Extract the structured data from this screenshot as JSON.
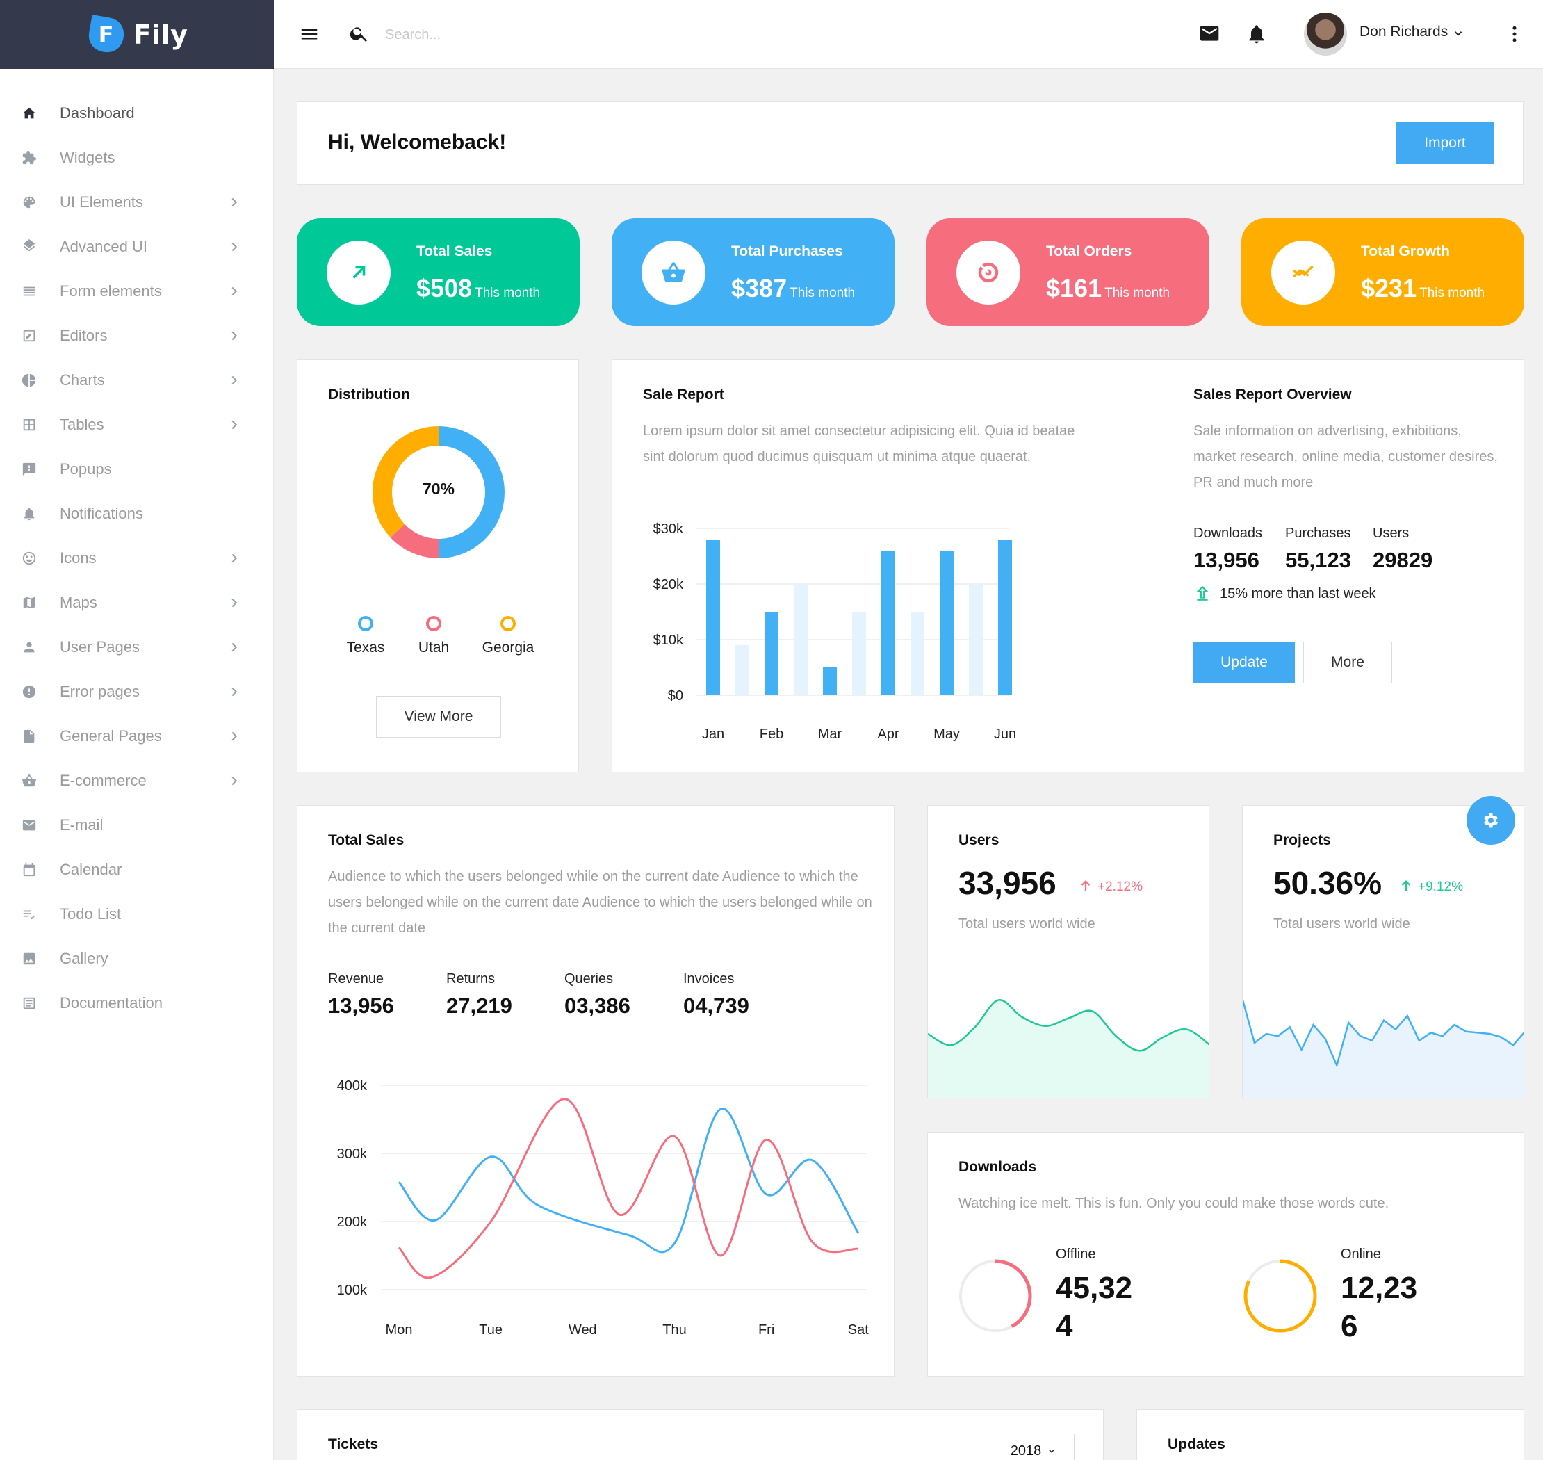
{
  "brand": {
    "name": "Fily",
    "letter": "F"
  },
  "sidebar": {
    "items": [
      {
        "label": "Dashboard",
        "icon": "home-icon",
        "has_submenu": false
      },
      {
        "label": "Widgets",
        "icon": "puzzle-icon",
        "has_submenu": false
      },
      {
        "label": "UI Elements",
        "icon": "palette-icon",
        "has_submenu": true
      },
      {
        "label": "Advanced UI",
        "icon": "layers-icon",
        "has_submenu": true
      },
      {
        "label": "Form elements",
        "icon": "list-icon",
        "has_submenu": true
      },
      {
        "label": "Editors",
        "icon": "edit-icon",
        "has_submenu": true
      },
      {
        "label": "Charts",
        "icon": "pie-chart-icon",
        "has_submenu": true
      },
      {
        "label": "Tables",
        "icon": "grid-icon",
        "has_submenu": true
      },
      {
        "label": "Popups",
        "icon": "feedback-icon",
        "has_submenu": false
      },
      {
        "label": "Notifications",
        "icon": "bell-icon",
        "has_submenu": false
      },
      {
        "label": "Icons",
        "icon": "smiley-icon",
        "has_submenu": true
      },
      {
        "label": "Maps",
        "icon": "map-icon",
        "has_submenu": true
      },
      {
        "label": "User Pages",
        "icon": "person-icon",
        "has_submenu": true
      },
      {
        "label": "Error pages",
        "icon": "error-icon",
        "has_submenu": true
      },
      {
        "label": "General Pages",
        "icon": "file-icon",
        "has_submenu": true
      },
      {
        "label": "E-commerce",
        "icon": "basket-icon",
        "has_submenu": true
      },
      {
        "label": "E-mail",
        "icon": "mail-icon",
        "has_submenu": false
      },
      {
        "label": "Calendar",
        "icon": "calendar-icon",
        "has_submenu": false
      },
      {
        "label": "Todo List",
        "icon": "checklist-icon",
        "has_submenu": false
      },
      {
        "label": "Gallery",
        "icon": "image-icon",
        "has_submenu": false
      },
      {
        "label": "Documentation",
        "icon": "document-icon",
        "has_submenu": false
      }
    ]
  },
  "topbar": {
    "search_placeholder": "Search...",
    "user_name": "Don Richards"
  },
  "welcome": {
    "title": "Hi, Welcomeback!",
    "import_label": "Import"
  },
  "stats": [
    {
      "label": "Total Sales",
      "value": "$508",
      "sub": "This month",
      "color": "#00c896",
      "icon": "trending-up-icon"
    },
    {
      "label": "Total Purchases",
      "value": "$387",
      "sub": "This month",
      "color": "#42b0f5",
      "icon": "basket-icon"
    },
    {
      "label": "Total Orders",
      "value": "$161",
      "sub": "This month",
      "color": "#f66d7e",
      "icon": "target-icon"
    },
    {
      "label": "Total Growth",
      "value": "$231",
      "sub": "This month",
      "color": "#ffae00",
      "icon": "growth-icon"
    }
  ],
  "distribution": {
    "title": "Distribution",
    "center_label": "70%",
    "legend": [
      {
        "label": "Texas",
        "color": "#42b0f5"
      },
      {
        "label": "Utah",
        "color": "#f66d7e"
      },
      {
        "label": "Georgia",
        "color": "#ffae00"
      }
    ],
    "button": "View More"
  },
  "sale_report": {
    "title": "Sale Report",
    "description": "Lorem ipsum dolor sit amet consectetur adipisicing elit. Quia id beatae sint dolorum quod ducimus quisquam ut minima atque quaerat.",
    "overview_title": "Sales Report Overview",
    "overview_description": "Sale information on advertising, exhibitions, market research, online media, customer desires, PR and much more",
    "metrics": [
      {
        "label": "Downloads",
        "value": "13,956"
      },
      {
        "label": "Purchases",
        "value": "55,123"
      },
      {
        "label": "Users",
        "value": "29829"
      }
    ],
    "trend_text": "15% more than last week",
    "update_label": "Update",
    "more_label": "More"
  },
  "total_sales": {
    "title": "Total Sales",
    "description": "Audience to which the users belonged while on the current date Audience to which the users belonged while on the current date Audience to which the users belonged while on the current date",
    "metrics": [
      {
        "label": "Revenue",
        "value": "13,956"
      },
      {
        "label": "Returns",
        "value": "27,219"
      },
      {
        "label": "Queries",
        "value": "03,386"
      },
      {
        "label": "Invoices",
        "value": "04,739"
      }
    ]
  },
  "users_card": {
    "title": "Users",
    "value": "33,956",
    "change": "+2.12%",
    "caption": "Total users world wide"
  },
  "projects_card": {
    "title": "Projects",
    "value": "50.36%",
    "change": "+9.12%",
    "caption": "Total users world wide"
  },
  "downloads_card": {
    "title": "Downloads",
    "description": "Watching ice melt. This is fun. Only you could make those words cute.",
    "offline_label": "Offline",
    "offline_value": "45,32\n4",
    "online_label": "Online",
    "online_value": "12,23\n6",
    "offline_progress": 0.42,
    "online_progress": 0.82
  },
  "tickets": {
    "title": "Tickets",
    "year": "2018"
  },
  "updates": {
    "title": "Updates"
  },
  "chart_data": [
    {
      "type": "bar",
      "categories": [
        "Jan",
        "",
        "Feb",
        "",
        "Mar",
        "",
        "Apr",
        "",
        "May",
        "",
        "Jun"
      ],
      "values": [
        28,
        9,
        15,
        20,
        5,
        15,
        26,
        15,
        26,
        20,
        28
      ],
      "highlight": [
        true,
        false,
        true,
        false,
        true,
        false,
        true,
        false,
        true,
        false,
        true
      ],
      "yticks": [
        "$0",
        "$10k",
        "$20k",
        "$30k"
      ],
      "ylim": [
        0,
        30
      ],
      "colors": {
        "main": "#42b0f5",
        "light": "#e5f3fe"
      }
    },
    {
      "type": "line",
      "categories": [
        "Mon",
        "Tue",
        "Wed",
        "Thu",
        "Fri",
        "Sat"
      ],
      "yticks": [
        "100k",
        "200k",
        "300k",
        "400k"
      ],
      "ylim": [
        100,
        400
      ],
      "series": [
        {
          "color": "#42b0f5",
          "x": [
            0,
            0.4,
            1,
            1.5,
            2.5,
            3,
            3.5,
            4,
            4.5,
            5
          ],
          "values": [
            258,
            202,
            295,
            225,
            180,
            168,
            365,
            240,
            290,
            183
          ]
        },
        {
          "color": "#f66d7e",
          "x": [
            0,
            0.35,
            1,
            1.8,
            2.4,
            3,
            3.5,
            4,
            4.5,
            5
          ],
          "values": [
            162,
            118,
            200,
            380,
            210,
            325,
            150,
            320,
            170,
            160
          ]
        }
      ]
    },
    {
      "type": "area",
      "color": "#1ec996",
      "fill": "#e3fbf3",
      "values": [
        58,
        48,
        64,
        88,
        73,
        65,
        72,
        78,
        56,
        43,
        55,
        62,
        48
      ]
    },
    {
      "type": "area",
      "color": "#42b0f5",
      "fill": "#e8f3fd",
      "values": [
        88,
        50,
        58,
        56,
        64,
        44,
        66,
        54,
        30,
        68,
        56,
        52,
        70,
        62,
        74,
        52,
        59,
        56,
        66,
        60,
        59,
        58,
        55,
        48,
        60
      ]
    },
    {
      "type": "pie",
      "categories": [
        "Texas",
        "Utah",
        "Georgia"
      ],
      "values": [
        50,
        13,
        37
      ],
      "colors": [
        "#42b0f5",
        "#f66d7e",
        "#ffae00"
      ]
    }
  ]
}
